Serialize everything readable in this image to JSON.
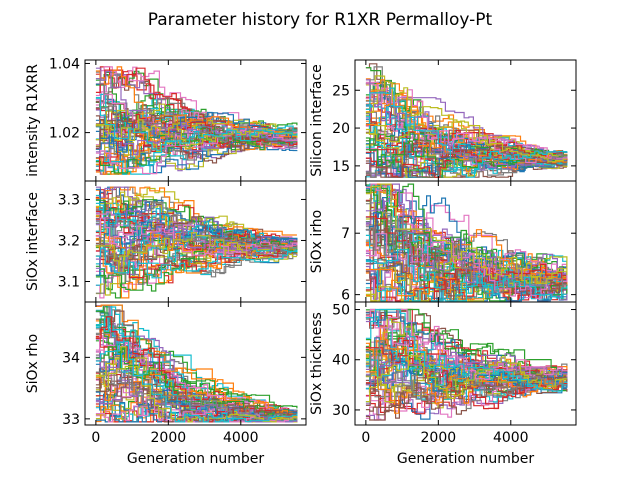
{
  "figure": {
    "title": "Parameter history for R1XR Permalloy-Pt"
  },
  "chart_data": [
    {
      "type": "line",
      "ylabel": "intensity R1XRR",
      "xlabel": "",
      "xlim": [
        -300,
        5800
      ],
      "ylim": [
        1.006,
        1.041
      ],
      "xticks": [
        0,
        2000,
        4000
      ],
      "yticks": [
        1.02,
        1.04
      ],
      "ytick_labels": [
        "1.02",
        "1.04"
      ],
      "show_xtick_labels": false,
      "n_walkers": 60,
      "generations": 5550,
      "start_range": [
        1.008,
        1.039
      ],
      "converged_center": 1.0185,
      "converged_spread": 0.002
    },
    {
      "type": "line",
      "ylabel": "Silicon interface",
      "xlabel": "",
      "xlim": [
        -300,
        5800
      ],
      "ylim": [
        13,
        29
      ],
      "xticks": [
        0,
        2000,
        4000
      ],
      "yticks": [
        15,
        20,
        25
      ],
      "ytick_labels": [
        "15",
        "20",
        "25"
      ],
      "show_xtick_labels": false,
      "n_walkers": 60,
      "generations": 5550,
      "start_range": [
        13.5,
        28.5
      ],
      "converged_center": 15.9,
      "converged_spread": 0.7
    },
    {
      "type": "line",
      "ylabel": "SiOx interface",
      "xlabel": "",
      "xlim": [
        -300,
        5800
      ],
      "ylim": [
        3.05,
        3.345
      ],
      "xticks": [
        0,
        2000,
        4000
      ],
      "yticks": [
        3.1,
        3.2,
        3.3
      ],
      "ytick_labels": [
        "3.1",
        "3.2",
        "3.3"
      ],
      "show_xtick_labels": false,
      "n_walkers": 60,
      "generations": 5550,
      "start_range": [
        3.06,
        3.33
      ],
      "converged_center": 3.182,
      "converged_spread": 0.018
    },
    {
      "type": "line",
      "ylabel": "SiOx irho",
      "xlabel": "",
      "xlim": [
        -300,
        5800
      ],
      "ylim": [
        5.88,
        7.85
      ],
      "xticks": [
        0,
        2000,
        4000
      ],
      "yticks": [
        6,
        7
      ],
      "ytick_labels": [
        "6",
        "7"
      ],
      "show_xtick_labels": false,
      "n_walkers": 60,
      "generations": 5550,
      "start_range": [
        5.9,
        7.8
      ],
      "converged_center": 6.2,
      "converged_spread": 0.3
    },
    {
      "type": "line",
      "ylabel": "SiOx rho",
      "xlabel": "Generation number",
      "xlim": [
        -300,
        5800
      ],
      "ylim": [
        32.9,
        34.9
      ],
      "xticks": [
        0,
        2000,
        4000
      ],
      "yticks": [
        33,
        34
      ],
      "ytick_labels": [
        "33",
        "34"
      ],
      "show_xtick_labels": true,
      "xtick_labels": [
        "0",
        "2000",
        "4000"
      ],
      "n_walkers": 60,
      "generations": 5550,
      "start_range": [
        32.95,
        34.85
      ],
      "converged_center": 33.02,
      "converged_spread": 0.08
    },
    {
      "type": "line",
      "ylabel": "SiOx thickness",
      "xlabel": "Generation number",
      "xlim": [
        -300,
        5800
      ],
      "ylim": [
        27,
        51.5
      ],
      "xticks": [
        0,
        2000,
        4000
      ],
      "yticks": [
        30,
        40,
        50
      ],
      "ytick_labels": [
        "30",
        "40",
        "50"
      ],
      "show_xtick_labels": true,
      "xtick_labels": [
        "0",
        "2000",
        "4000"
      ],
      "n_walkers": 60,
      "generations": 5550,
      "start_range": [
        28,
        50
      ],
      "converged_center": 36,
      "converged_spread": 2.2
    }
  ],
  "palette": [
    "#1f77b4",
    "#ff7f0e",
    "#2ca02c",
    "#d62728",
    "#9467bd",
    "#8c564b",
    "#e377c2",
    "#7f7f7f",
    "#bcbd22",
    "#17becf"
  ]
}
